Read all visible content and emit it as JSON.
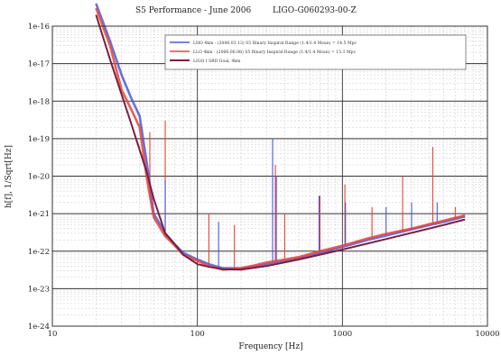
{
  "chart_data": {
    "type": "line",
    "title": "S5 Performance - June 2006",
    "document_id": "LIGO-G060293-00-Z",
    "xlabel": "Frequency [Hz]",
    "ylabel": "h[f], 1/Sqrt[Hz]",
    "x_scale": "log",
    "y_scale": "log",
    "xlim": [
      10,
      10000
    ],
    "ylim": [
      1e-24,
      1e-16
    ],
    "x_ticks": [
      {
        "value": 10,
        "label": "10"
      },
      {
        "value": 100,
        "label": "100"
      },
      {
        "value": 1000,
        "label": "1000"
      },
      {
        "value": 10000,
        "label": "10000"
      }
    ],
    "y_ticks": [
      {
        "value": 1e-16,
        "label": "1e-16"
      },
      {
        "value": 1e-17,
        "label": "1e-17"
      },
      {
        "value": 1e-18,
        "label": "1e-18"
      },
      {
        "value": 1e-19,
        "label": "1e-19"
      },
      {
        "value": 1e-20,
        "label": "1e-20"
      },
      {
        "value": 1e-21,
        "label": "1e-21"
      },
      {
        "value": 1e-22,
        "label": "1e-22"
      },
      {
        "value": 1e-23,
        "label": "1e-23"
      },
      {
        "value": 1e-24,
        "label": "1e-24"
      }
    ],
    "grid": true,
    "legend_position": "top-right",
    "series": [
      {
        "name": "LHO 4km - (2006.03.13) S5 Binary Inspiral Range (1.4/1.4 Msun) = 14.5 Mpc",
        "color": "#4a5ad8",
        "x": [
          20,
          25,
          30,
          35,
          40,
          45,
          50,
          60,
          70,
          80,
          100,
          120,
          150,
          200,
          250,
          300,
          400,
          500,
          700,
          1000,
          1500,
          2000,
          3000,
          4000,
          5000,
          7000
        ],
        "y": [
          4e-16,
          4e-17,
          5e-18,
          1.2e-18,
          4e-19,
          2e-20,
          1e-21,
          3e-22,
          1.5e-22,
          9e-23,
          6e-23,
          4.5e-23,
          3.5e-23,
          3.5e-23,
          4e-23,
          4.5e-23,
          5.5e-23,
          6.5e-23,
          9e-23,
          1.3e-22,
          2e-22,
          2.6e-22,
          3.8e-22,
          5e-22,
          6e-22,
          8.5e-22
        ]
      },
      {
        "name": "LLO 4km - (2006.06.08) S5 Binary Inspiral Range (1.4/1.4 Msun) = 15.1 Mpc",
        "color": "#e8443a",
        "x": [
          20,
          25,
          30,
          35,
          40,
          45,
          50,
          60,
          70,
          80,
          100,
          120,
          150,
          200,
          250,
          300,
          400,
          500,
          700,
          1000,
          1500,
          2000,
          3000,
          4000,
          5000,
          7000
        ],
        "y": [
          3e-16,
          3e-17,
          2e-18,
          6e-19,
          2e-19,
          8e-21,
          8e-22,
          2.5e-22,
          1.4e-22,
          8e-23,
          5.5e-23,
          4e-23,
          3.2e-23,
          3.5e-23,
          4.2e-23,
          5e-23,
          6e-23,
          7e-23,
          1e-22,
          1.4e-22,
          2.2e-22,
          2.9e-22,
          4e-22,
          5.3e-22,
          6.5e-22,
          9e-22
        ]
      },
      {
        "name": "LIGO I SRD Goal, 4km",
        "color": "#7a1f3d",
        "x": [
          20,
          25,
          30,
          35,
          40,
          45,
          50,
          60,
          70,
          80,
          100,
          120,
          150,
          200,
          300,
          500,
          1000,
          2000,
          5000,
          7000
        ],
        "y": [
          2e-16,
          1.3e-17,
          1.5e-18,
          2.5e-19,
          5e-20,
          1.2e-20,
          2.5e-21,
          3e-22,
          1.5e-22,
          8e-23,
          4.5e-23,
          3.8e-23,
          3.3e-23,
          3.2e-23,
          4e-23,
          6e-23,
          1.1e-22,
          2.1e-22,
          5e-22,
          7e-22
        ]
      }
    ],
    "spikes": [
      {
        "series": 1,
        "x": 47,
        "y": 1.5e-19
      },
      {
        "series": 1,
        "x": 60,
        "y": 3e-19
      },
      {
        "series": 0,
        "x": 60,
        "y": 8e-21
      },
      {
        "series": 1,
        "x": 120,
        "y": 1e-21
      },
      {
        "series": 0,
        "x": 140,
        "y": 6e-22
      },
      {
        "series": 1,
        "x": 180,
        "y": 5e-22
      },
      {
        "series": 0,
        "x": 330,
        "y": 1e-19
      },
      {
        "series": 1,
        "x": 345,
        "y": 2e-20
      },
      {
        "series": 0,
        "x": 350,
        "y": 1e-20
      },
      {
        "series": 1,
        "x": 400,
        "y": 1e-21
      },
      {
        "series": 0,
        "x": 690,
        "y": 3e-21
      },
      {
        "series": 1,
        "x": 700,
        "y": 3e-21
      },
      {
        "series": 1,
        "x": 1040,
        "y": 6e-21
      },
      {
        "series": 0,
        "x": 1050,
        "y": 2e-21
      },
      {
        "series": 1,
        "x": 1600,
        "y": 1.5e-21
      },
      {
        "series": 0,
        "x": 2000,
        "y": 1.5e-21
      },
      {
        "series": 1,
        "x": 2600,
        "y": 1e-20
      },
      {
        "series": 0,
        "x": 3000,
        "y": 2e-21
      },
      {
        "series": 1,
        "x": 4200,
        "y": 6e-20
      },
      {
        "series": 0,
        "x": 4500,
        "y": 2e-21
      },
      {
        "series": 1,
        "x": 6000,
        "y": 1.5e-21
      }
    ]
  }
}
